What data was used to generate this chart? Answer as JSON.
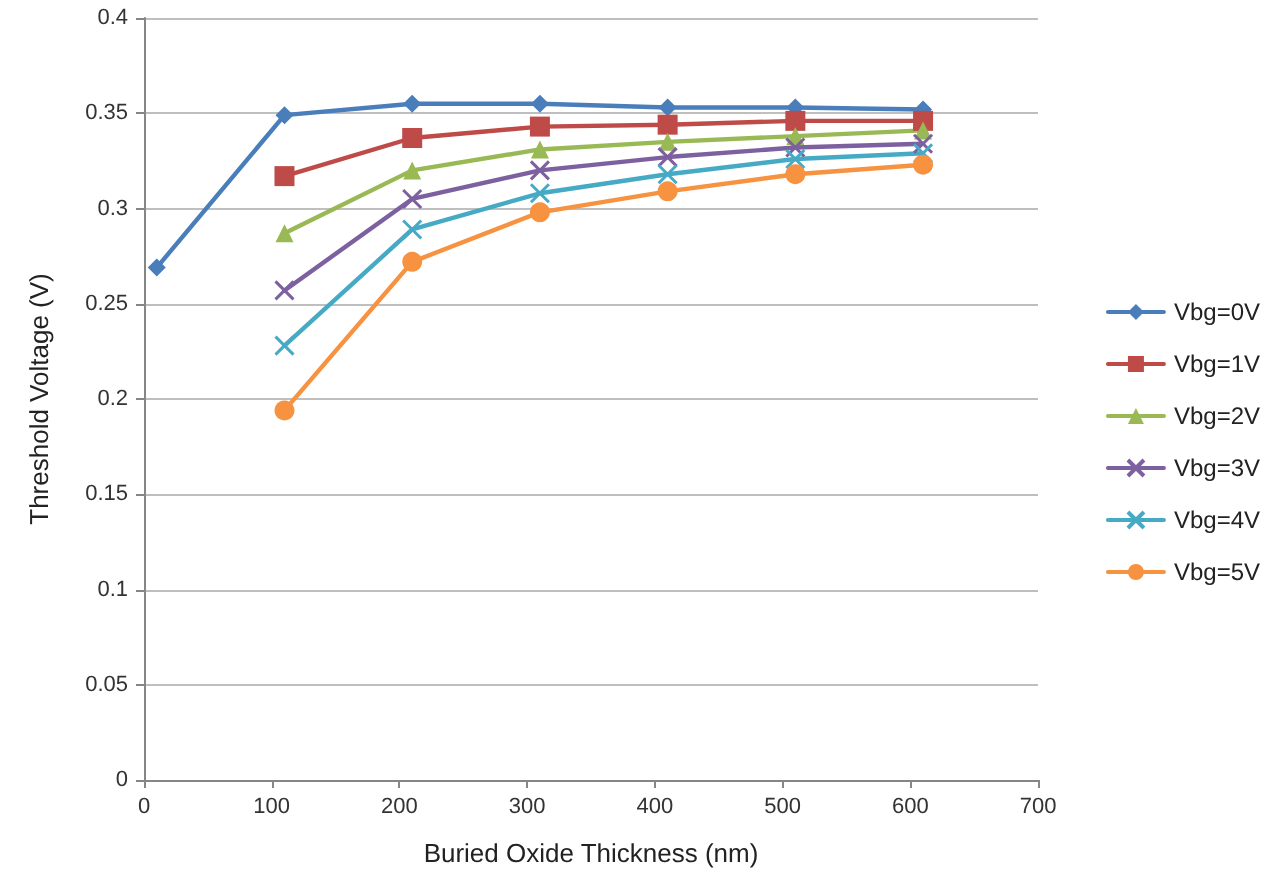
{
  "chart_data": {
    "type": "line",
    "xlabel": "Buried Oxide Thickness (nm)",
    "ylabel": "Threshold Voltage (V)",
    "xlim": [
      0,
      700
    ],
    "xticks": [
      0,
      100,
      200,
      300,
      400,
      500,
      600,
      700
    ],
    "ylim": [
      0,
      0.4
    ],
    "yticks": [
      0,
      0.05,
      0.1,
      0.15,
      0.2,
      0.25,
      0.3,
      0.35,
      0.4
    ],
    "grid": "y",
    "legend": "right",
    "line_style": "solid",
    "series": [
      {
        "name": "Vbg=0V",
        "color": "#4a7ebb",
        "marker": "diamond",
        "x": [
          10,
          110,
          210,
          310,
          410,
          510,
          610
        ],
        "values": [
          0.269,
          0.349,
          0.355,
          0.355,
          0.353,
          0.353,
          0.352
        ]
      },
      {
        "name": "Vbg=1V",
        "color": "#be4b48",
        "marker": "square",
        "x": [
          110,
          210,
          310,
          410,
          510,
          610
        ],
        "values": [
          0.317,
          0.337,
          0.343,
          0.344,
          0.346,
          0.346
        ]
      },
      {
        "name": "Vbg=2V",
        "color": "#98b954",
        "marker": "triangle",
        "x": [
          110,
          210,
          310,
          410,
          510,
          610
        ],
        "values": [
          0.287,
          0.32,
          0.331,
          0.335,
          0.338,
          0.341
        ]
      },
      {
        "name": "Vbg=3V",
        "color": "#7d60a0",
        "marker": "cross",
        "x": [
          110,
          210,
          310,
          410,
          510,
          610
        ],
        "values": [
          0.257,
          0.305,
          0.32,
          0.327,
          0.332,
          0.334
        ]
      },
      {
        "name": "Vbg=4V",
        "color": "#46aac5",
        "marker": "cross",
        "x": [
          110,
          210,
          310,
          410,
          510,
          610
        ],
        "values": [
          0.228,
          0.289,
          0.308,
          0.318,
          0.326,
          0.329
        ]
      },
      {
        "name": "Vbg=5V",
        "color": "#f69240",
        "marker": "circle",
        "x": [
          110,
          210,
          310,
          410,
          510,
          610
        ],
        "values": [
          0.194,
          0.272,
          0.298,
          0.309,
          0.318,
          0.323
        ]
      }
    ]
  }
}
